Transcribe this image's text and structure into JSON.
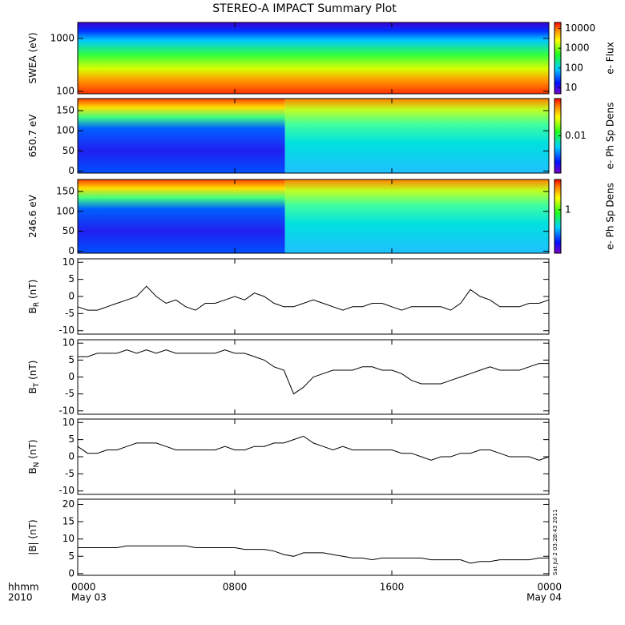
{
  "title": "STEREO-A IMPACT Summary Plot",
  "timestamp": "Sat Jul  2 03:28:43 2011",
  "x_axis": {
    "row_labels": [
      "hhmm",
      "2010"
    ],
    "xlim": [
      0,
      24
    ],
    "xticks": [
      {
        "value": 0,
        "label": "0000"
      },
      {
        "value": 8,
        "label": "0800"
      },
      {
        "value": 16,
        "label": "1600"
      },
      {
        "value": 24,
        "label": "0000"
      }
    ],
    "xtick_dates": [
      {
        "value": 0,
        "label": "May 03"
      },
      {
        "value": 24,
        "label": "May 04"
      }
    ],
    "x": [
      0,
      0.5,
      1,
      1.5,
      2,
      2.5,
      3,
      3.5,
      4,
      4.5,
      5,
      5.5,
      6,
      6.5,
      7,
      7.5,
      8,
      8.5,
      9,
      9.5,
      10,
      10.5,
      11,
      11.5,
      12,
      12.5,
      13,
      13.5,
      14,
      14.5,
      15,
      15.5,
      16,
      16.5,
      17,
      17.5,
      18,
      18.5,
      19,
      19.5,
      20,
      20.5,
      21,
      21.5,
      22,
      22.5,
      23,
      23.5,
      24
    ]
  },
  "chart_data": [
    {
      "type": "heatmap",
      "ylabel": [
        "SWEA (eV)"
      ],
      "log_y": true,
      "ylim": [
        90,
        2000
      ],
      "yticks": [
        100,
        1000
      ],
      "colorbar": {
        "label": "e- Flux",
        "log": true,
        "clim": [
          5,
          20000
        ],
        "ticks": [
          10,
          100,
          1000,
          10000
        ]
      }
    },
    {
      "type": "heatmap",
      "ylabel": [
        "650.7 eV"
      ],
      "log_y": false,
      "ylim": [
        -5,
        180
      ],
      "yticks": [
        0,
        50,
        100,
        150
      ],
      "colorbar": {
        "label": "e- Ph Sp Dens",
        "log": true,
        "clim": [
          0.002,
          0.05
        ],
        "ticks": [
          0.01
        ]
      }
    },
    {
      "type": "heatmap",
      "ylabel": [
        "246.6 eV"
      ],
      "log_y": false,
      "ylim": [
        -5,
        180
      ],
      "yticks": [
        0,
        50,
        100,
        150
      ],
      "colorbar": {
        "label": "e- Ph Sp Dens",
        "log": true,
        "clim": [
          0.1,
          5
        ],
        "ticks": [
          1
        ]
      }
    },
    {
      "type": "line",
      "ylabel": [
        "B",
        "R",
        " (nT)"
      ],
      "ylim": [
        -11,
        11
      ],
      "yticks": [
        -10,
        -5,
        0,
        5,
        10
      ],
      "color": "#000000",
      "values": [
        -3,
        -4,
        -4,
        -3,
        -2,
        -1,
        0,
        3,
        0,
        -2,
        -1,
        -3,
        -4,
        -2,
        -2,
        -1,
        0,
        -1,
        1,
        0,
        -2,
        -3,
        -3,
        -2,
        -1,
        -2,
        -3,
        -4,
        -3,
        -3,
        -2,
        -2,
        -3,
        -4,
        -3,
        -3,
        -3,
        -3,
        -4,
        -2,
        2,
        0,
        -1,
        -3,
        -3,
        -3,
        -2,
        -2,
        -1
      ]
    },
    {
      "type": "line",
      "ylabel": [
        "B",
        "T",
        " (nT)"
      ],
      "ylim": [
        -11,
        11
      ],
      "yticks": [
        -10,
        -5,
        0,
        5,
        10
      ],
      "color": "#000000",
      "values": [
        6,
        6,
        7,
        7,
        7,
        8,
        7,
        8,
        7,
        8,
        7,
        7,
        7,
        7,
        7,
        8,
        7,
        7,
        6,
        5,
        3,
        2,
        -5,
        -3,
        0,
        1,
        2,
        2,
        2,
        3,
        3,
        2,
        2,
        1,
        -1,
        -2,
        -2,
        -2,
        -1,
        0,
        1,
        2,
        3,
        2,
        2,
        2,
        3,
        4,
        4
      ]
    },
    {
      "type": "line",
      "ylabel": [
        "B",
        "N",
        " (nT)"
      ],
      "ylim": [
        -11,
        11
      ],
      "yticks": [
        -10,
        -5,
        0,
        5,
        10
      ],
      "color": "#000000",
      "values": [
        3,
        1,
        1,
        2,
        2,
        3,
        4,
        4,
        4,
        3,
        2,
        2,
        2,
        2,
        2,
        3,
        2,
        2,
        3,
        3,
        4,
        4,
        5,
        6,
        4,
        3,
        2,
        3,
        2,
        2,
        2,
        2,
        2,
        1,
        1,
        0,
        -1,
        0,
        0,
        1,
        1,
        2,
        2,
        1,
        0,
        0,
        0,
        -1,
        0
      ]
    },
    {
      "type": "line",
      "ylabel": [
        "|B| (nT)"
      ],
      "ylim": [
        -0.5,
        21.5
      ],
      "yticks": [
        0,
        5,
        10,
        15,
        20
      ],
      "color": "#000000",
      "values": [
        7.5,
        7.5,
        7.5,
        7.5,
        7.5,
        8,
        8,
        8,
        8,
        8,
        8,
        8,
        7.5,
        7.5,
        7.5,
        7.5,
        7.5,
        7,
        7,
        7,
        6.5,
        5.5,
        5,
        6,
        6,
        6,
        5.5,
        5,
        4.5,
        4.5,
        4,
        4.5,
        4.5,
        4.5,
        4.5,
        4.5,
        4,
        4,
        4,
        4,
        3,
        3.5,
        3.5,
        4,
        4,
        4,
        4,
        4.5,
        4.5
      ]
    }
  ]
}
